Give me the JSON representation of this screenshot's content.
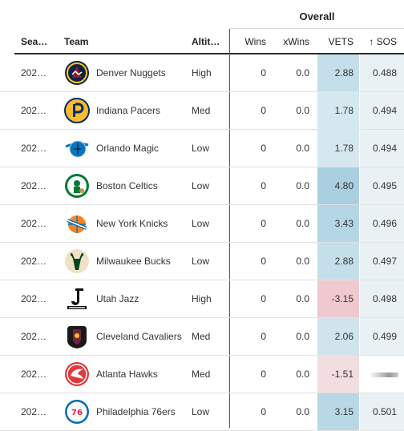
{
  "group_header": "Overall",
  "columns": {
    "season": "Sea…",
    "team": "Team",
    "altitude": "Altit…",
    "wins": "Wins",
    "xwins": "xWins",
    "vets": "VETS",
    "sos": "↑ SOS"
  },
  "colors": {
    "vets_positive_strong": "#a9cfe0",
    "vets_positive": "#c4dfe9",
    "vets_positive_light": "#d6e8ef",
    "vets_negative": "#efc9cf",
    "vets_negative_light": "#f2dde1",
    "sos_bg": "#eaf1f4",
    "header_rule": "#2c2c2c"
  },
  "rows": [
    {
      "season": "202…",
      "team": "Denver Nuggets",
      "altitude": "High",
      "wins": "0",
      "xwins": "0.0",
      "vets": "2.88",
      "sos": "0.488",
      "logo": "denver-nuggets-logo"
    },
    {
      "season": "202…",
      "team": "Indiana Pacers",
      "altitude": "Med",
      "wins": "0",
      "xwins": "0.0",
      "vets": "1.78",
      "sos": "0.494",
      "logo": "indiana-pacers-logo"
    },
    {
      "season": "202…",
      "team": "Orlando Magic",
      "altitude": "Low",
      "wins": "0",
      "xwins": "0.0",
      "vets": "1.78",
      "sos": "0.494",
      "logo": "orlando-magic-logo"
    },
    {
      "season": "202…",
      "team": "Boston Celtics",
      "altitude": "Low",
      "wins": "0",
      "xwins": "0.0",
      "vets": "4.80",
      "sos": "0.495",
      "logo": "boston-celtics-logo"
    },
    {
      "season": "202…",
      "team": "New York Knicks",
      "altitude": "Low",
      "wins": "0",
      "xwins": "0.0",
      "vets": "3.43",
      "sos": "0.496",
      "logo": "new-york-knicks-logo"
    },
    {
      "season": "202…",
      "team": "Milwaukee Bucks",
      "altitude": "Low",
      "wins": "0",
      "xwins": "0.0",
      "vets": "2.88",
      "sos": "0.497",
      "logo": "milwaukee-bucks-logo"
    },
    {
      "season": "202…",
      "team": "Utah Jazz",
      "altitude": "High",
      "wins": "0",
      "xwins": "0.0",
      "vets": "-3.15",
      "sos": "0.498",
      "logo": "utah-jazz-logo"
    },
    {
      "season": "202…",
      "team": "Cleveland Cavaliers",
      "altitude": "Med",
      "wins": "0",
      "xwins": "0.0",
      "vets": "2.06",
      "sos": "0.499",
      "logo": "cleveland-cavaliers-logo"
    },
    {
      "season": "202…",
      "team": "Atlanta Hawks",
      "altitude": "Med",
      "wins": "0",
      "xwins": "0.0",
      "vets": "-1.51",
      "sos": "",
      "logo": "atlanta-hawks-logo"
    },
    {
      "season": "202…",
      "team": "Philadelphia 76ers",
      "altitude": "Low",
      "wins": "0",
      "xwins": "0.0",
      "vets": "3.15",
      "sos": "0.501",
      "logo": "philadelphia-76ers-logo"
    }
  ]
}
